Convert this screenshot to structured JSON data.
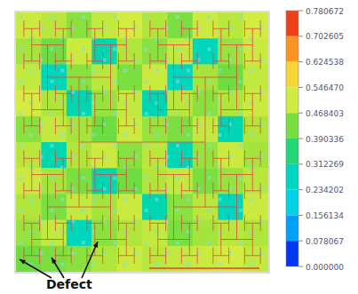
{
  "chart_data": {
    "type": "heatmap",
    "cells": [
      [
        0.5,
        0.48,
        0.44,
        0.49,
        0.51,
        0.47,
        0.43,
        0.5,
        0.48,
        0.51
      ],
      [
        0.46,
        0.42,
        0.5,
        0.3,
        0.47,
        0.44,
        0.49,
        0.28,
        0.45,
        0.5
      ],
      [
        0.49,
        0.28,
        0.44,
        0.48,
        0.43,
        0.5,
        0.27,
        0.46,
        0.42,
        0.49
      ],
      [
        0.51,
        0.47,
        0.3,
        0.45,
        0.49,
        0.29,
        0.48,
        0.44,
        0.47,
        0.5
      ],
      [
        0.44,
        0.49,
        0.46,
        0.42,
        0.5,
        0.45,
        0.43,
        0.49,
        0.29,
        0.47
      ],
      [
        0.48,
        0.3,
        0.47,
        0.5,
        0.44,
        0.48,
        0.29,
        0.45,
        0.5,
        0.46
      ],
      [
        0.5,
        0.46,
        0.43,
        0.29,
        0.42,
        0.47,
        0.49,
        0.43,
        0.45,
        0.48
      ],
      [
        0.47,
        0.43,
        0.49,
        0.46,
        0.5,
        0.3,
        0.44,
        0.48,
        0.28,
        0.5
      ],
      [
        0.45,
        0.49,
        0.28,
        0.44,
        0.47,
        0.49,
        0.43,
        0.46,
        0.48,
        0.47
      ],
      [
        0.42,
        0.43,
        0.44,
        0.47,
        0.5,
        0.48,
        0.49,
        0.5,
        0.51,
        0.49
      ]
    ],
    "color_range": [
      0,
      0.780672
    ],
    "color_ticks": [
      {
        "value": 0.780672,
        "label": "0.780672"
      },
      {
        "value": 0.702605,
        "label": "0.702605"
      },
      {
        "value": 0.624538,
        "label": "0.624538"
      },
      {
        "value": 0.54647,
        "label": "0.546470"
      },
      {
        "value": 0.468403,
        "label": "0.468403"
      },
      {
        "value": 0.390336,
        "label": "0.390336"
      },
      {
        "value": 0.312269,
        "label": "0.312269"
      },
      {
        "value": 0.234202,
        "label": "0.234202"
      },
      {
        "value": 0.156134,
        "label": "0.156134"
      },
      {
        "value": 0.078067,
        "label": "0.078067"
      },
      {
        "value": 0,
        "label": "0.000000"
      }
    ],
    "annotation": "Defect"
  }
}
